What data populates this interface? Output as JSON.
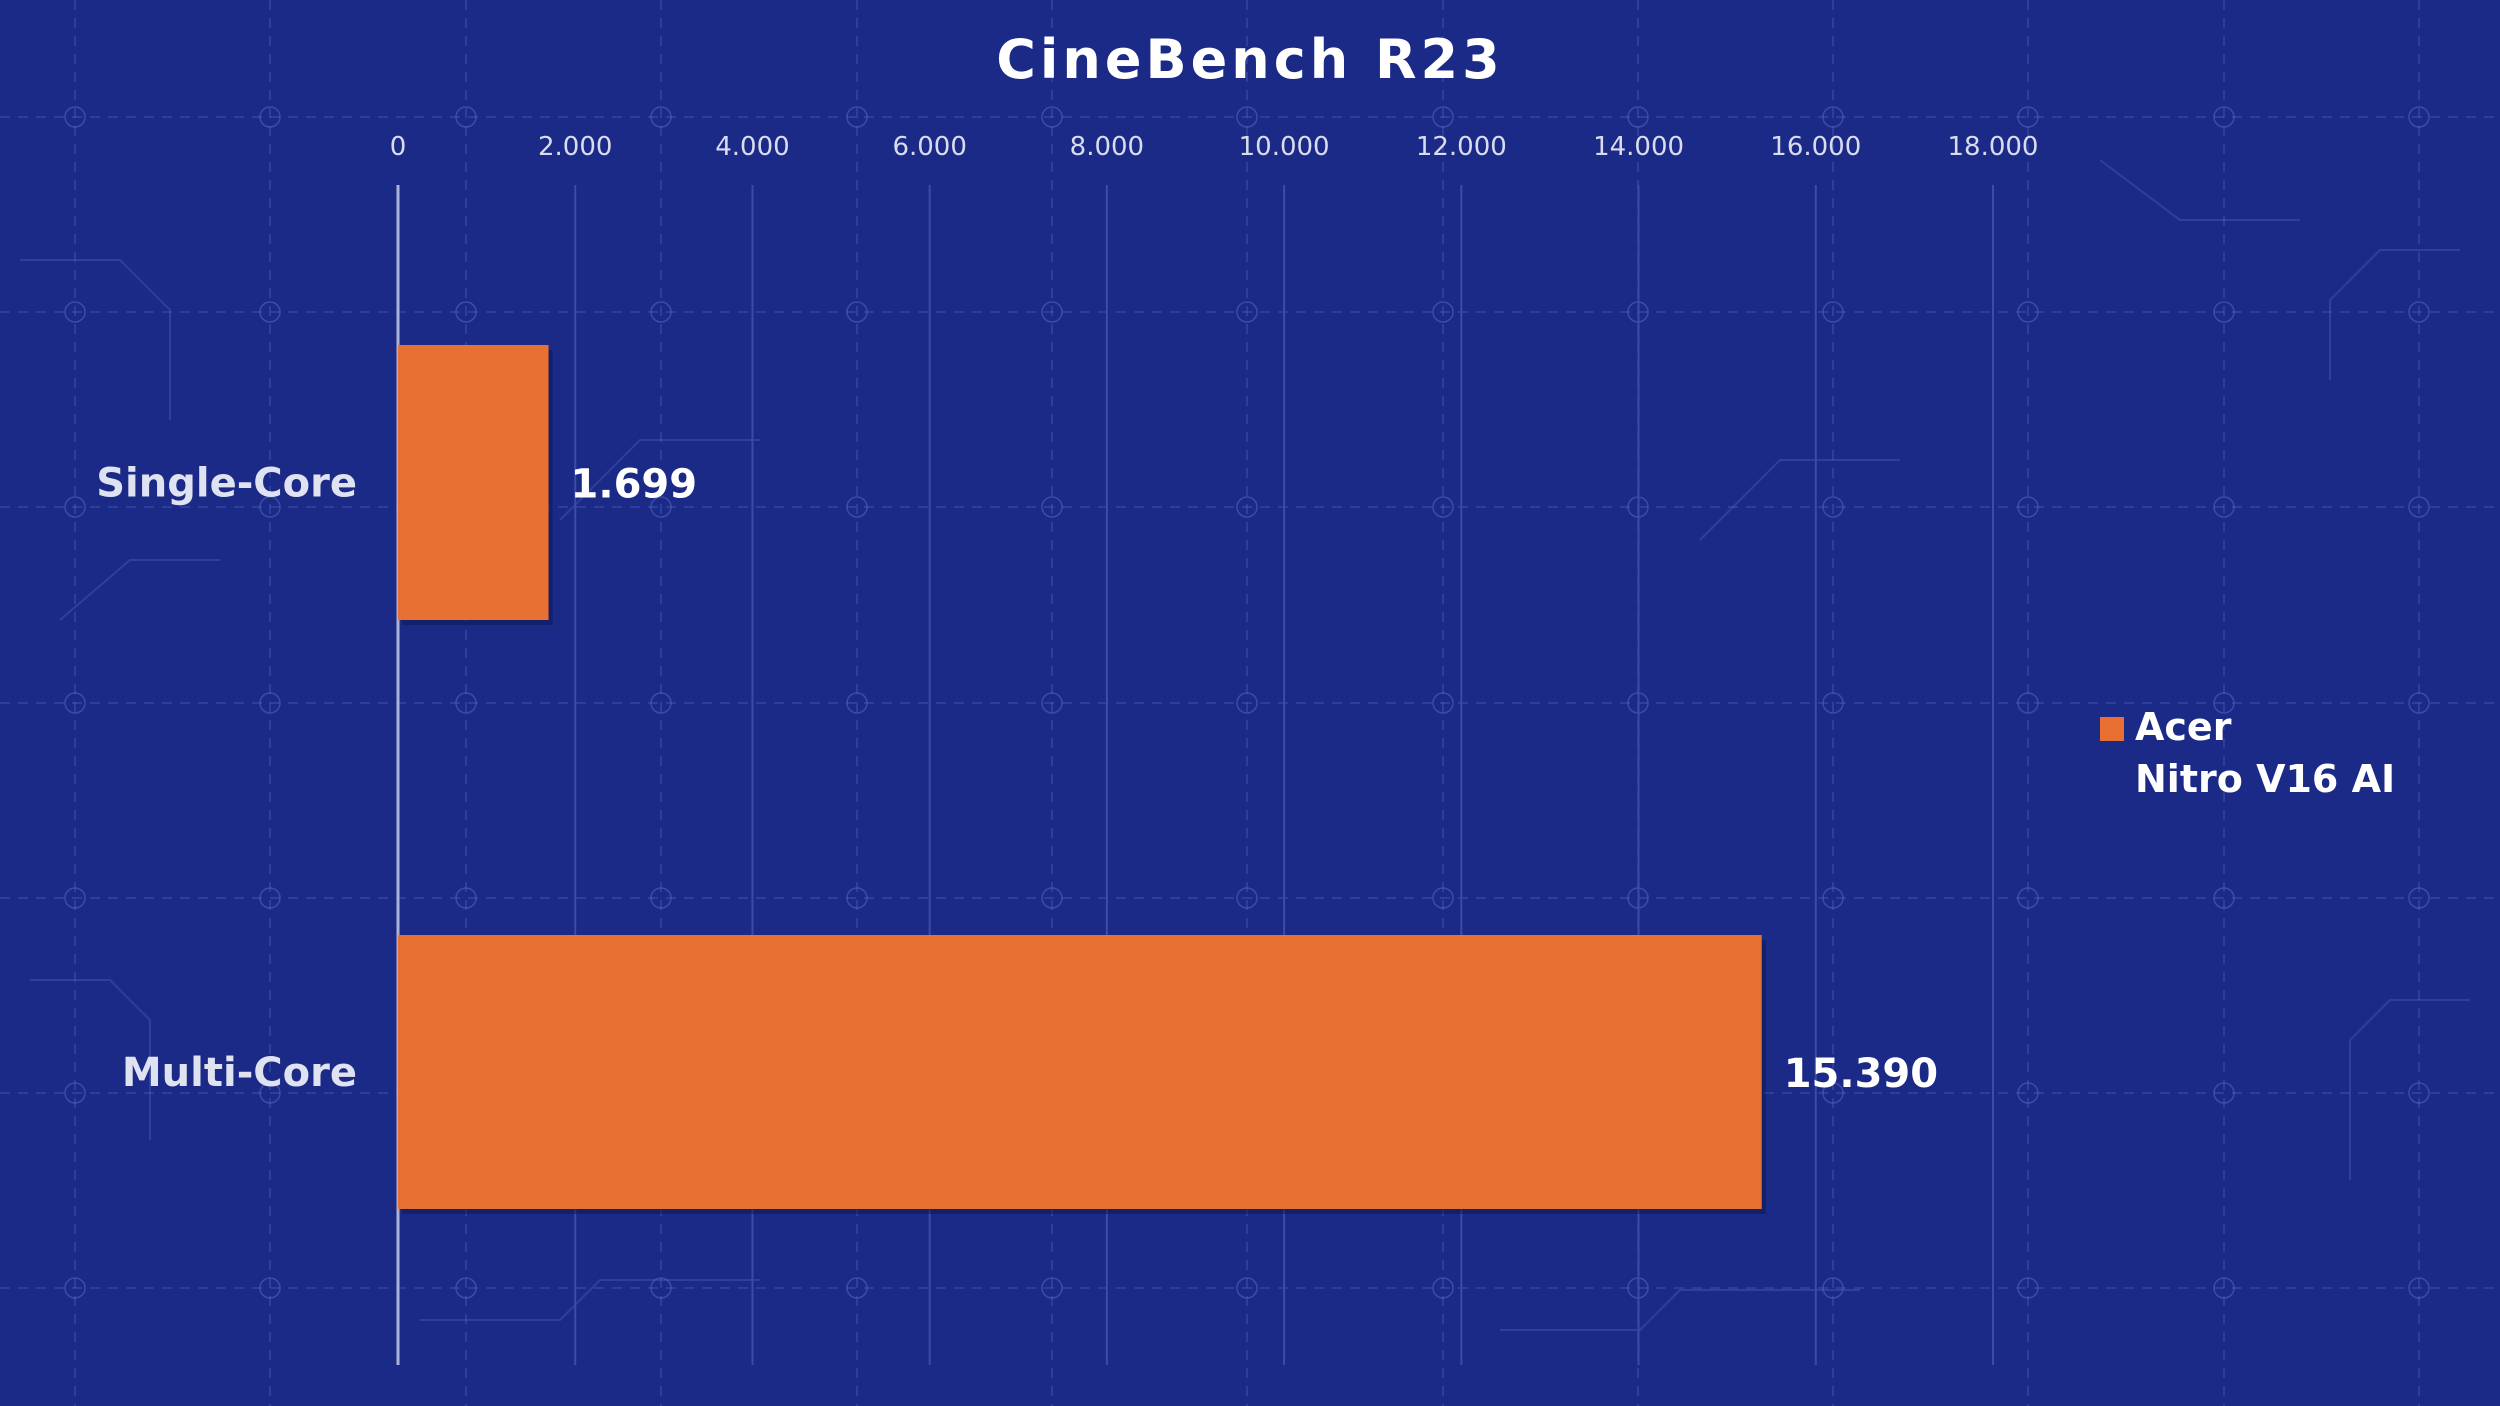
{
  "chart_data": {
    "type": "bar",
    "orientation": "horizontal",
    "title": "CineBench R23",
    "categories": [
      "Single-Core",
      "Multi-Core"
    ],
    "series": [
      {
        "name": "Acer Nitro V16 AI",
        "values": [
          1699,
          15390
        ],
        "color": "#e87033"
      }
    ],
    "value_labels": [
      "1.699",
      "15.390"
    ],
    "xlim": [
      0,
      18000
    ],
    "xticks": [
      0,
      2000,
      4000,
      6000,
      8000,
      10000,
      12000,
      14000,
      16000,
      18000
    ],
    "xtick_labels": [
      "0",
      "2.000",
      "4.000",
      "6.000",
      "8.000",
      "10.000",
      "12.000",
      "14.000",
      "16.000",
      "18.000"
    ],
    "legend": {
      "position": "right",
      "lines": [
        "Acer",
        "Nitro V16 AI"
      ]
    },
    "grid": true
  },
  "colors": {
    "background": "#1b2a86",
    "bar": "#e87033",
    "text": "#ffffff",
    "category_text": "#dfe2f0",
    "tick_text": "#d9dcef",
    "grid": "#3b4ca3",
    "axis": "#aab2d8",
    "pattern": "#5566c4"
  }
}
